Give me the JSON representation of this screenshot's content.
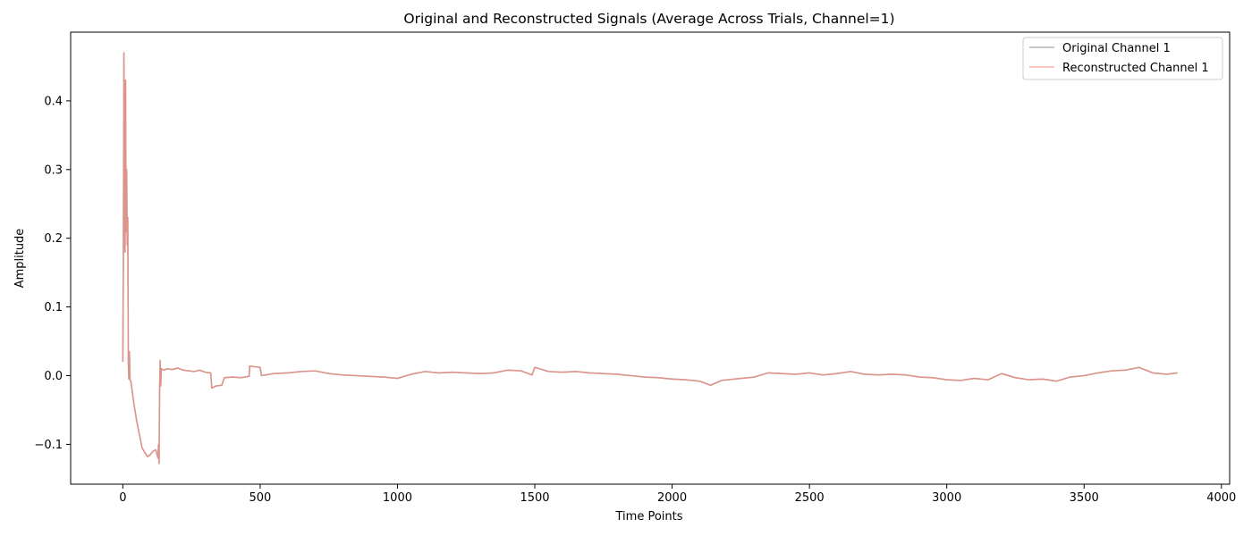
{
  "chart_data": {
    "type": "line",
    "title": "Original and Reconstructed Signals (Average Across Trials, Channel=1)",
    "xlabel": "Time Points",
    "ylabel": "Amplitude",
    "xlim": [
      -190,
      4030
    ],
    "ylim": [
      -0.158,
      0.5
    ],
    "x_ticks": [
      0,
      500,
      1000,
      1500,
      2000,
      2500,
      3000,
      3500,
      4000
    ],
    "y_ticks": [
      -0.1,
      0.0,
      0.1,
      0.2,
      0.3,
      0.4
    ],
    "y_tick_labels": [
      "−0.1",
      "0.0",
      "0.1",
      "0.2",
      "0.3",
      "0.4"
    ],
    "grid": false,
    "legend_position": "top-right",
    "series": [
      {
        "name": "Original Channel 1",
        "color": "#7f7f7f",
        "alpha": 0.6,
        "points": [
          [
            0,
            0.02
          ],
          [
            2,
            0.17
          ],
          [
            4,
            0.47
          ],
          [
            6,
            0.29
          ],
          [
            8,
            0.18
          ],
          [
            10,
            0.43
          ],
          [
            12,
            0.21
          ],
          [
            14,
            0.3
          ],
          [
            16,
            0.19
          ],
          [
            18,
            0.23
          ],
          [
            20,
            0.02
          ],
          [
            22,
            -0.005
          ],
          [
            24,
            0.035
          ],
          [
            26,
            -0.005
          ],
          [
            30,
            -0.01
          ],
          [
            40,
            -0.04
          ],
          [
            50,
            -0.065
          ],
          [
            60,
            -0.085
          ],
          [
            70,
            -0.105
          ],
          [
            80,
            -0.112
          ],
          [
            90,
            -0.118
          ],
          [
            100,
            -0.115
          ],
          [
            110,
            -0.11
          ],
          [
            120,
            -0.108
          ],
          [
            128,
            -0.12
          ],
          [
            130,
            -0.1
          ],
          [
            132,
            -0.128
          ],
          [
            134,
            -0.02
          ],
          [
            136,
            0.022
          ],
          [
            138,
            -0.015
          ],
          [
            140,
            0.01
          ],
          [
            150,
            0.008
          ],
          [
            160,
            0.01
          ],
          [
            180,
            0.009
          ],
          [
            200,
            0.011
          ],
          [
            220,
            0.008
          ],
          [
            240,
            0.007
          ],
          [
            260,
            0.006
          ],
          [
            280,
            0.008
          ],
          [
            300,
            0.005
          ],
          [
            320,
            0.004
          ],
          [
            324,
            -0.018
          ],
          [
            340,
            -0.015
          ],
          [
            360,
            -0.014
          ],
          [
            370,
            -0.003
          ],
          [
            400,
            -0.002
          ],
          [
            430,
            -0.003
          ],
          [
            460,
            -0.001
          ],
          [
            462,
            0.014
          ],
          [
            480,
            0.013
          ],
          [
            500,
            0.012
          ],
          [
            505,
            0.0
          ],
          [
            550,
            0.003
          ],
          [
            600,
            0.004
          ],
          [
            650,
            0.006
          ],
          [
            700,
            0.007
          ],
          [
            750,
            0.003
          ],
          [
            800,
            0.001
          ],
          [
            850,
            0.0
          ],
          [
            900,
            -0.001
          ],
          [
            950,
            -0.002
          ],
          [
            1000,
            -0.004
          ],
          [
            1050,
            0.002
          ],
          [
            1100,
            0.006
          ],
          [
            1150,
            0.004
          ],
          [
            1200,
            0.005
          ],
          [
            1250,
            0.004
          ],
          [
            1300,
            0.003
          ],
          [
            1350,
            0.004
          ],
          [
            1400,
            0.008
          ],
          [
            1450,
            0.007
          ],
          [
            1490,
            0.001
          ],
          [
            1500,
            0.012
          ],
          [
            1550,
            0.006
          ],
          [
            1600,
            0.005
          ],
          [
            1650,
            0.006
          ],
          [
            1700,
            0.004
          ],
          [
            1750,
            0.003
          ],
          [
            1800,
            0.002
          ],
          [
            1850,
            0.0
          ],
          [
            1900,
            -0.002
          ],
          [
            1950,
            -0.003
          ],
          [
            2000,
            -0.005
          ],
          [
            2050,
            -0.006
          ],
          [
            2100,
            -0.008
          ],
          [
            2140,
            -0.014
          ],
          [
            2180,
            -0.007
          ],
          [
            2250,
            -0.004
          ],
          [
            2300,
            -0.002
          ],
          [
            2350,
            0.004
          ],
          [
            2400,
            0.003
          ],
          [
            2450,
            0.002
          ],
          [
            2500,
            0.004
          ],
          [
            2550,
            0.001
          ],
          [
            2600,
            0.003
          ],
          [
            2650,
            0.006
          ],
          [
            2700,
            0.002
          ],
          [
            2750,
            0.001
          ],
          [
            2800,
            0.002
          ],
          [
            2850,
            0.001
          ],
          [
            2900,
            -0.002
          ],
          [
            2950,
            -0.003
          ],
          [
            3000,
            -0.006
          ],
          [
            3050,
            -0.007
          ],
          [
            3100,
            -0.004
          ],
          [
            3150,
            -0.006
          ],
          [
            3200,
            0.003
          ],
          [
            3250,
            -0.003
          ],
          [
            3300,
            -0.006
          ],
          [
            3350,
            -0.005
          ],
          [
            3400,
            -0.008
          ],
          [
            3450,
            -0.002
          ],
          [
            3500,
            0.0
          ],
          [
            3550,
            0.004
          ],
          [
            3600,
            0.007
          ],
          [
            3650,
            0.008
          ],
          [
            3700,
            0.012
          ],
          [
            3750,
            0.004
          ],
          [
            3800,
            0.002
          ],
          [
            3840,
            0.004
          ]
        ]
      },
      {
        "name": "Reconstructed Channel 1",
        "color": "#fa8072",
        "alpha": 0.6,
        "points": [
          [
            0,
            0.02
          ],
          [
            2,
            0.17
          ],
          [
            4,
            0.47
          ],
          [
            6,
            0.29
          ],
          [
            8,
            0.18
          ],
          [
            10,
            0.43
          ],
          [
            12,
            0.21
          ],
          [
            14,
            0.3
          ],
          [
            16,
            0.19
          ],
          [
            18,
            0.23
          ],
          [
            20,
            0.02
          ],
          [
            22,
            -0.005
          ],
          [
            24,
            0.035
          ],
          [
            26,
            -0.005
          ],
          [
            30,
            -0.01
          ],
          [
            40,
            -0.04
          ],
          [
            50,
            -0.065
          ],
          [
            60,
            -0.085
          ],
          [
            70,
            -0.105
          ],
          [
            80,
            -0.112
          ],
          [
            90,
            -0.118
          ],
          [
            100,
            -0.115
          ],
          [
            110,
            -0.11
          ],
          [
            120,
            -0.108
          ],
          [
            128,
            -0.12
          ],
          [
            130,
            -0.1
          ],
          [
            132,
            -0.128
          ],
          [
            134,
            -0.02
          ],
          [
            136,
            0.022
          ],
          [
            138,
            -0.015
          ],
          [
            140,
            0.01
          ],
          [
            150,
            0.008
          ],
          [
            160,
            0.01
          ],
          [
            180,
            0.009
          ],
          [
            200,
            0.011
          ],
          [
            220,
            0.008
          ],
          [
            240,
            0.007
          ],
          [
            260,
            0.006
          ],
          [
            280,
            0.008
          ],
          [
            300,
            0.005
          ],
          [
            320,
            0.004
          ],
          [
            324,
            -0.018
          ],
          [
            340,
            -0.015
          ],
          [
            360,
            -0.014
          ],
          [
            370,
            -0.003
          ],
          [
            400,
            -0.002
          ],
          [
            430,
            -0.003
          ],
          [
            460,
            -0.001
          ],
          [
            462,
            0.014
          ],
          [
            480,
            0.013
          ],
          [
            500,
            0.012
          ],
          [
            505,
            0.0
          ],
          [
            550,
            0.003
          ],
          [
            600,
            0.004
          ],
          [
            650,
            0.006
          ],
          [
            700,
            0.007
          ],
          [
            750,
            0.003
          ],
          [
            800,
            0.001
          ],
          [
            850,
            0.0
          ],
          [
            900,
            -0.001
          ],
          [
            950,
            -0.002
          ],
          [
            1000,
            -0.004
          ],
          [
            1050,
            0.002
          ],
          [
            1100,
            0.006
          ],
          [
            1150,
            0.004
          ],
          [
            1200,
            0.005
          ],
          [
            1250,
            0.004
          ],
          [
            1300,
            0.003
          ],
          [
            1350,
            0.004
          ],
          [
            1400,
            0.008
          ],
          [
            1450,
            0.007
          ],
          [
            1490,
            0.001
          ],
          [
            1500,
            0.012
          ],
          [
            1550,
            0.006
          ],
          [
            1600,
            0.005
          ],
          [
            1650,
            0.006
          ],
          [
            1700,
            0.004
          ],
          [
            1750,
            0.003
          ],
          [
            1800,
            0.002
          ],
          [
            1850,
            0.0
          ],
          [
            1900,
            -0.002
          ],
          [
            1950,
            -0.003
          ],
          [
            2000,
            -0.005
          ],
          [
            2050,
            -0.006
          ],
          [
            2100,
            -0.008
          ],
          [
            2140,
            -0.014
          ],
          [
            2180,
            -0.007
          ],
          [
            2250,
            -0.004
          ],
          [
            2300,
            -0.002
          ],
          [
            2350,
            0.004
          ],
          [
            2400,
            0.003
          ],
          [
            2450,
            0.002
          ],
          [
            2500,
            0.004
          ],
          [
            2550,
            0.001
          ],
          [
            2600,
            0.003
          ],
          [
            2650,
            0.006
          ],
          [
            2700,
            0.002
          ],
          [
            2750,
            0.001
          ],
          [
            2800,
            0.002
          ],
          [
            2850,
            0.001
          ],
          [
            2900,
            -0.002
          ],
          [
            2950,
            -0.003
          ],
          [
            3000,
            -0.006
          ],
          [
            3050,
            -0.007
          ],
          [
            3100,
            -0.004
          ],
          [
            3150,
            -0.006
          ],
          [
            3200,
            0.003
          ],
          [
            3250,
            -0.003
          ],
          [
            3300,
            -0.006
          ],
          [
            3350,
            -0.005
          ],
          [
            3400,
            -0.008
          ],
          [
            3450,
            -0.002
          ],
          [
            3500,
            0.0
          ],
          [
            3550,
            0.004
          ],
          [
            3600,
            0.007
          ],
          [
            3650,
            0.008
          ],
          [
            3700,
            0.012
          ],
          [
            3750,
            0.004
          ],
          [
            3800,
            0.002
          ],
          [
            3840,
            0.004
          ]
        ]
      }
    ]
  }
}
